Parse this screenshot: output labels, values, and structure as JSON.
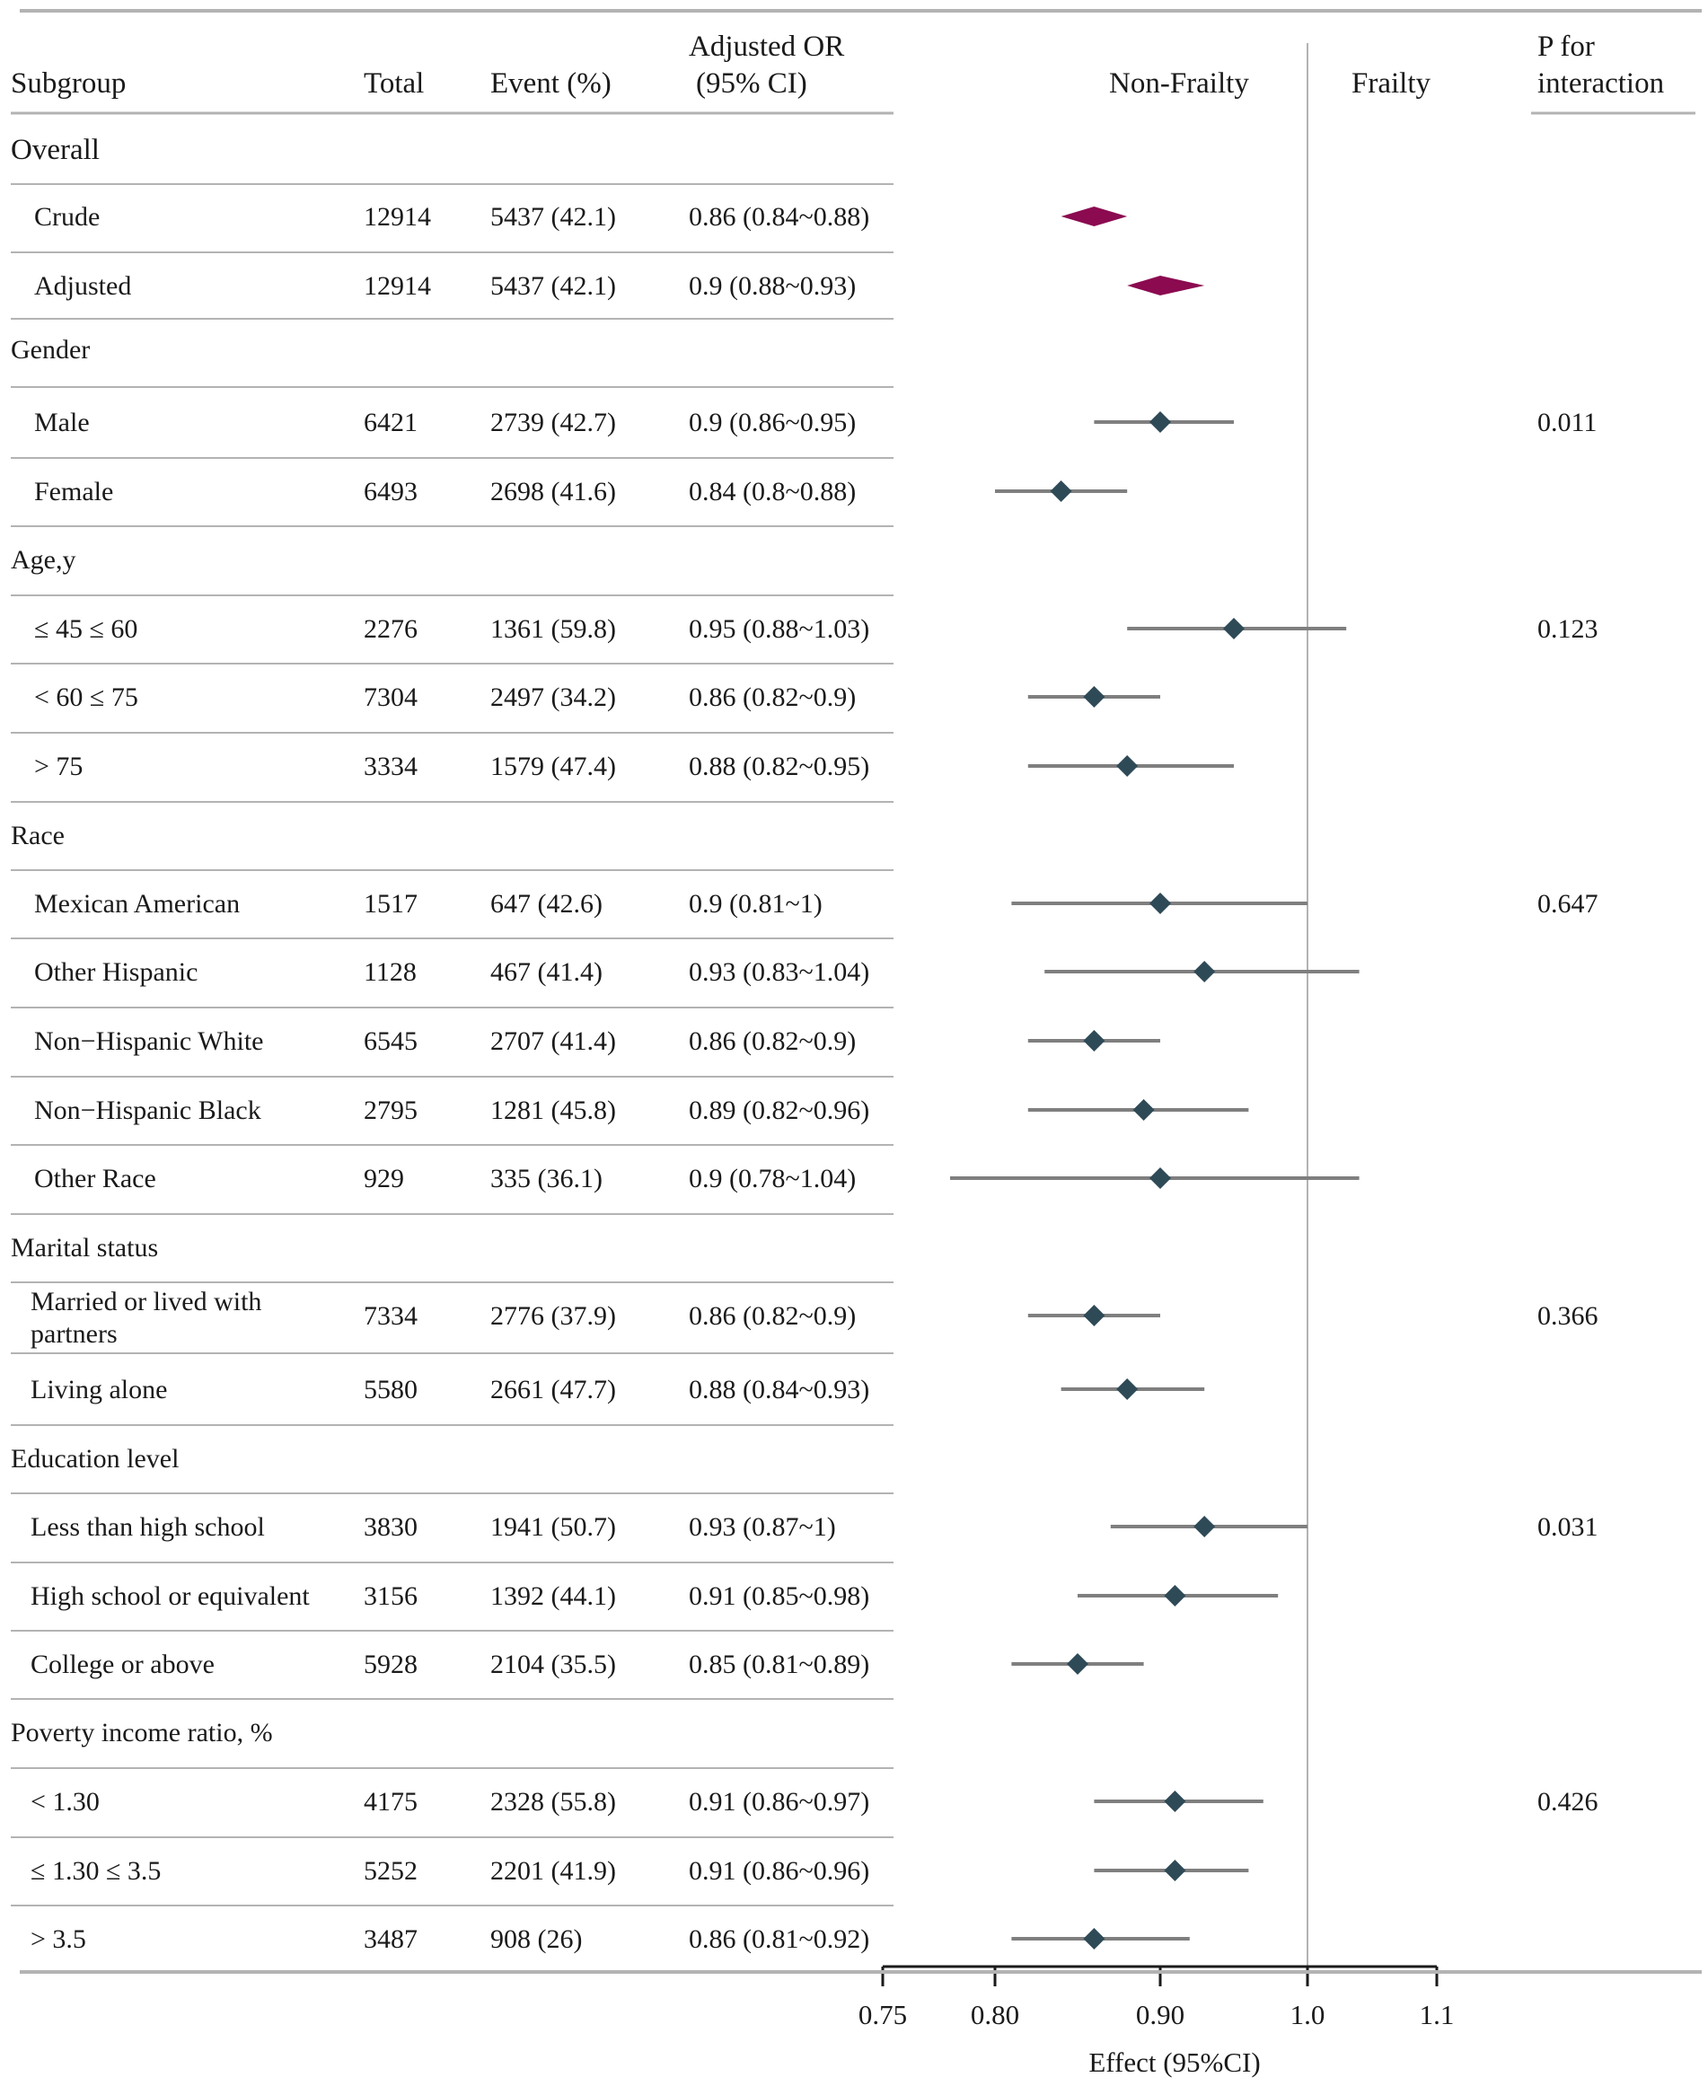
{
  "columns": {
    "subgroup": "Subgroup",
    "total": "Total",
    "event": "Event (%)",
    "or_line1": "Adjusted OR",
    "or_line2": "(95% CI)",
    "non_frailty": "Non-Frailty",
    "frailty": "Frailty",
    "p_line1": "P for",
    "p_line2": "interaction"
  },
  "colors": {
    "overall_marker": "#8b0a50",
    "point_marker": "#2f4a57",
    "ci_line": "#7f7f7f",
    "rule": "#b3b3b3",
    "reference_line": "#b3b3b3",
    "axis": "#1a1a1a"
  },
  "chart_data": {
    "type": "forest",
    "title": "",
    "xlabel": "Effect (95%CI)",
    "xlim": [
      0.75,
      1.1
    ],
    "reference_value": 1.0,
    "xticks": [
      {
        "value": 0.75,
        "label": "0.75"
      },
      {
        "value": 0.8,
        "label": "0.80"
      },
      {
        "value": 0.9,
        "label": "0.90"
      },
      {
        "value": 1.0,
        "label": "1.0"
      },
      {
        "value": 1.1,
        "label": "1.1"
      }
    ],
    "rows": [
      {
        "kind": "overall-header",
        "label": "Overall"
      },
      {
        "kind": "summary",
        "label": "Crude",
        "total": "12914",
        "event": "5437 (42.1)",
        "or_text": "0.86 (0.84~0.88)",
        "or": 0.86,
        "lower": 0.84,
        "upper": 0.88,
        "p": ""
      },
      {
        "kind": "summary",
        "label": "Adjusted",
        "total": "12914",
        "event": "5437 (42.1)",
        "or_text": "0.9 (0.88~0.93)",
        "or": 0.9,
        "lower": 0.88,
        "upper": 0.93,
        "p": ""
      },
      {
        "kind": "group",
        "label": "Gender"
      },
      {
        "kind": "item",
        "label": "Male",
        "total": "6421",
        "event": "2739 (42.7)",
        "or_text": "0.9 (0.86~0.95)",
        "or": 0.9,
        "lower": 0.86,
        "upper": 0.95,
        "p": "0.011"
      },
      {
        "kind": "item",
        "label": "Female",
        "total": "6493",
        "event": "2698 (41.6)",
        "or_text": "0.84 (0.8~0.88)",
        "or": 0.84,
        "lower": 0.8,
        "upper": 0.88,
        "p": ""
      },
      {
        "kind": "group",
        "label": "Age,y"
      },
      {
        "kind": "item",
        "label": "≤ 45 ≤ 60",
        "total": "2276",
        "event": "1361 (59.8)",
        "or_text": "0.95 (0.88~1.03)",
        "or": 0.95,
        "lower": 0.88,
        "upper": 1.03,
        "p": "0.123"
      },
      {
        "kind": "item",
        "label": "< 60 ≤ 75",
        "total": "7304",
        "event": "2497 (34.2)",
        "or_text": "0.86 (0.82~0.9)",
        "or": 0.86,
        "lower": 0.82,
        "upper": 0.9,
        "p": ""
      },
      {
        "kind": "item",
        "label": "> 75",
        "total": "3334",
        "event": "1579 (47.4)",
        "or_text": "0.88 (0.82~0.95)",
        "or": 0.88,
        "lower": 0.82,
        "upper": 0.95,
        "p": ""
      },
      {
        "kind": "group",
        "label": "Race"
      },
      {
        "kind": "item",
        "label": "Mexican American",
        "total": "1517",
        "event": "647 (42.6)",
        "or_text": "0.9 (0.81~1)",
        "or": 0.9,
        "lower": 0.81,
        "upper": 1.0,
        "p": "0.647"
      },
      {
        "kind": "item",
        "label": "Other Hispanic",
        "total": "1128",
        "event": "467 (41.4)",
        "or_text": "0.93 (0.83~1.04)",
        "or": 0.93,
        "lower": 0.83,
        "upper": 1.04,
        "p": ""
      },
      {
        "kind": "item",
        "label": "Non−Hispanic White",
        "total": "6545",
        "event": "2707 (41.4)",
        "or_text": "0.86 (0.82~0.9)",
        "or": 0.86,
        "lower": 0.82,
        "upper": 0.9,
        "p": ""
      },
      {
        "kind": "item",
        "label": "Non−Hispanic Black",
        "total": "2795",
        "event": "1281 (45.8)",
        "or_text": "0.89 (0.82~0.96)",
        "or": 0.89,
        "lower": 0.82,
        "upper": 0.96,
        "p": ""
      },
      {
        "kind": "item",
        "label": "Other Race",
        "total": "929",
        "event": "335 (36.1)",
        "or_text": "0.9 (0.78~1.04)",
        "or": 0.9,
        "lower": 0.78,
        "upper": 1.04,
        "p": ""
      },
      {
        "kind": "group",
        "label": "Marital status"
      },
      {
        "kind": "item",
        "label": "Married or  lived with",
        "label2": "partners",
        "total": "7334",
        "event": "2776 (37.9)",
        "or_text": "0.86 (0.82~0.9)",
        "or": 0.86,
        "lower": 0.82,
        "upper": 0.9,
        "p": "0.366"
      },
      {
        "kind": "item",
        "label": "Living alone",
        "total": "5580",
        "event": "2661 (47.7)",
        "or_text": "0.88 (0.84~0.93)",
        "or": 0.88,
        "lower": 0.84,
        "upper": 0.93,
        "p": ""
      },
      {
        "kind": "group",
        "label": "Education level"
      },
      {
        "kind": "item",
        "label": "Less than high school",
        "total": "3830",
        "event": "1941 (50.7)",
        "or_text": "0.93 (0.87~1)",
        "or": 0.93,
        "lower": 0.87,
        "upper": 1.0,
        "p": "0.031"
      },
      {
        "kind": "item",
        "label": "High school or equivalent",
        "total": "3156",
        "event": "1392 (44.1)",
        "or_text": "0.91 (0.85~0.98)",
        "or": 0.91,
        "lower": 0.85,
        "upper": 0.98,
        "p": ""
      },
      {
        "kind": "item",
        "label": "College or above",
        "total": "5928",
        "event": "2104 (35.5)",
        "or_text": "0.85 (0.81~0.89)",
        "or": 0.85,
        "lower": 0.81,
        "upper": 0.89,
        "p": ""
      },
      {
        "kind": "group",
        "label": "Poverty income ratio, %"
      },
      {
        "kind": "item",
        "label": "< 1.30",
        "total": "4175",
        "event": "2328 (55.8)",
        "or_text": "0.91 (0.86~0.97)",
        "or": 0.91,
        "lower": 0.86,
        "upper": 0.97,
        "p": "0.426"
      },
      {
        "kind": "item",
        "label": "≤ 1.30 ≤ 3.5",
        "total": "5252",
        "event": "2201 (41.9)",
        "or_text": "0.91 (0.86~0.96)",
        "or": 0.91,
        "lower": 0.86,
        "upper": 0.96,
        "p": ""
      },
      {
        "kind": "item",
        "label": "> 3.5",
        "total": "3487",
        "event": "908 (26)",
        "or_text": "0.86 (0.81~0.92)",
        "or": 0.86,
        "lower": 0.81,
        "upper": 0.92,
        "p": ""
      }
    ]
  }
}
